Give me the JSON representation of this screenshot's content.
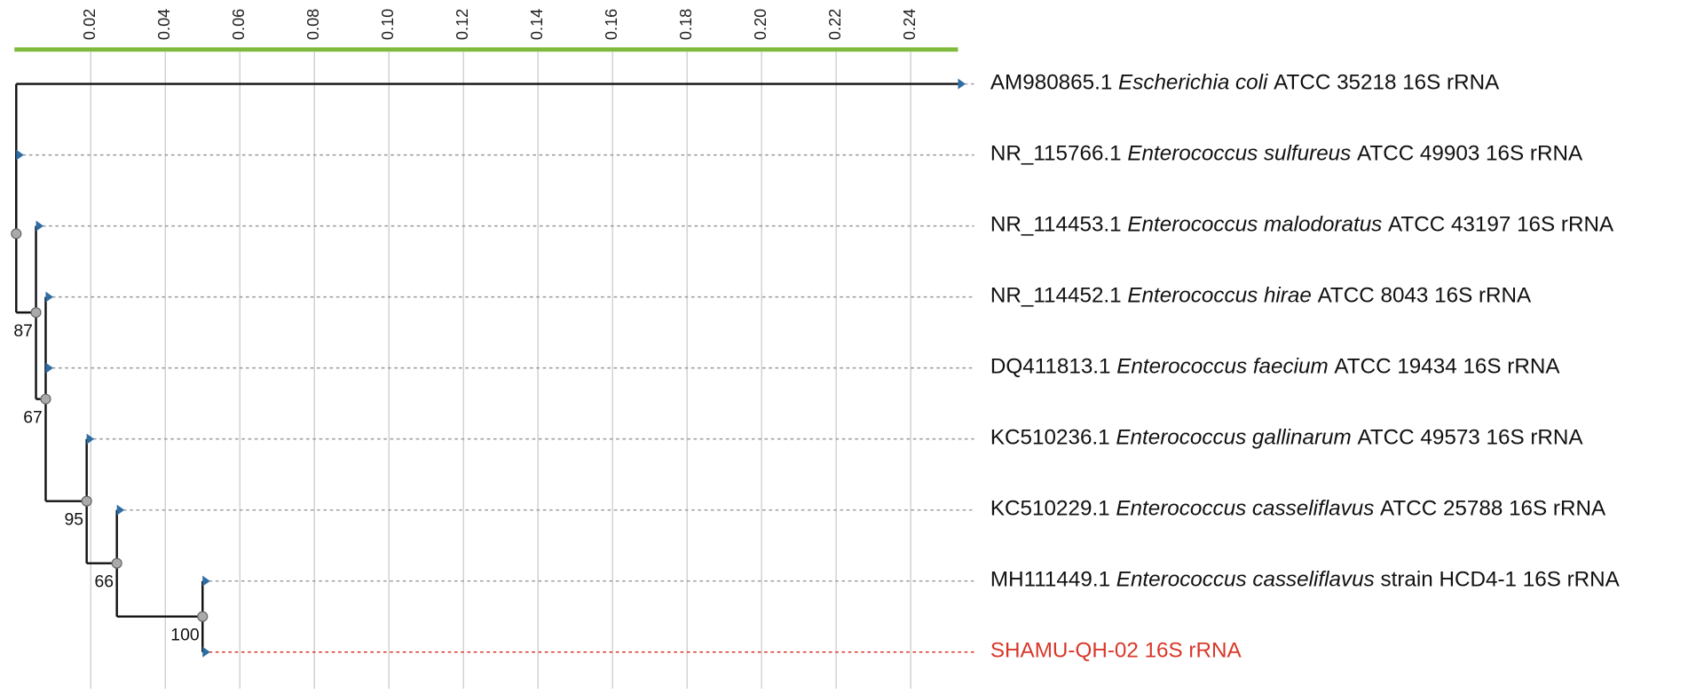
{
  "axis": {
    "ticks": [
      {
        "value": 0.02,
        "label": "0.02"
      },
      {
        "value": 0.04,
        "label": "0.04"
      },
      {
        "value": 0.06,
        "label": "0.06"
      },
      {
        "value": 0.08,
        "label": "0.08"
      },
      {
        "value": 0.1,
        "label": "0.10"
      },
      {
        "value": 0.12,
        "label": "0.12"
      },
      {
        "value": 0.14,
        "label": "0.14"
      },
      {
        "value": 0.16,
        "label": "0.16"
      },
      {
        "value": 0.18,
        "label": "0.18"
      },
      {
        "value": 0.2,
        "label": "0.20"
      },
      {
        "value": 0.22,
        "label": "0.22"
      },
      {
        "value": 0.24,
        "label": "0.24"
      }
    ]
  },
  "tree": {
    "x": 0,
    "children": [
      {
        "x": 0.2527,
        "label": {
          "accession": "AM980865.1",
          "species": "Escherichia coli",
          "detail": "ATCC 35218 16S rRNA"
        }
      },
      {
        "x": 0,
        "children": [
          {
            "x": 0,
            "label": {
              "accession": "NR_115766.1",
              "species": "Enterococcus sulfureus",
              "detail": "ATCC 49903 16S rRNA"
            }
          },
          {
            "x": 0.0053,
            "support": 87,
            "children": [
              {
                "x": 0.0053,
                "label": {
                  "accession": "NR_114453.1",
                  "species": "Enterococcus malodoratus",
                  "detail": "ATCC 43197 16S rRNA"
                }
              },
              {
                "x": 0.0079,
                "support": 67,
                "children": [
                  {
                    "x": 0.0079,
                    "label": {
                      "accession": "NR_114452.1",
                      "species": "Enterococcus hirae",
                      "detail": "ATCC 8043 16S rRNA"
                    }
                  },
                  {
                    "x": 0.0079,
                    "label": {
                      "accession": "DQ411813.1",
                      "species": "Enterococcus faecium",
                      "detail": "ATCC 19434 16S rRNA"
                    }
                  },
                  {
                    "x": 0.0189,
                    "support": 95,
                    "children": [
                      {
                        "x": 0.0189,
                        "label": {
                          "accession": "KC510236.1",
                          "species": "Enterococcus gallinarum",
                          "detail": "ATCC 49573 16S rRNA"
                        }
                      },
                      {
                        "x": 0.027,
                        "support": 66,
                        "children": [
                          {
                            "x": 0.027,
                            "label": {
                              "accession": "KC510229.1",
                              "species": "Enterococcus casseliflavus",
                              "detail": "ATCC 25788 16S rRNA"
                            }
                          },
                          {
                            "x": 0.05,
                            "support": 100,
                            "children": [
                              {
                                "x": 0.05,
                                "label": {
                                  "accession": "MH111449.1",
                                  "species": "Enterococcus casseliflavus",
                                  "detail": "strain HCD4-1 16S rRNA"
                                }
                              },
                              {
                                "x": 0.05,
                                "label": {
                                  "name": "SHAMU-QH-02 16S rRNA",
                                  "color": "#d8382a"
                                }
                              }
                            ]
                          }
                        ]
                      }
                    ]
                  }
                ]
              }
            ]
          }
        ]
      }
    ]
  }
}
